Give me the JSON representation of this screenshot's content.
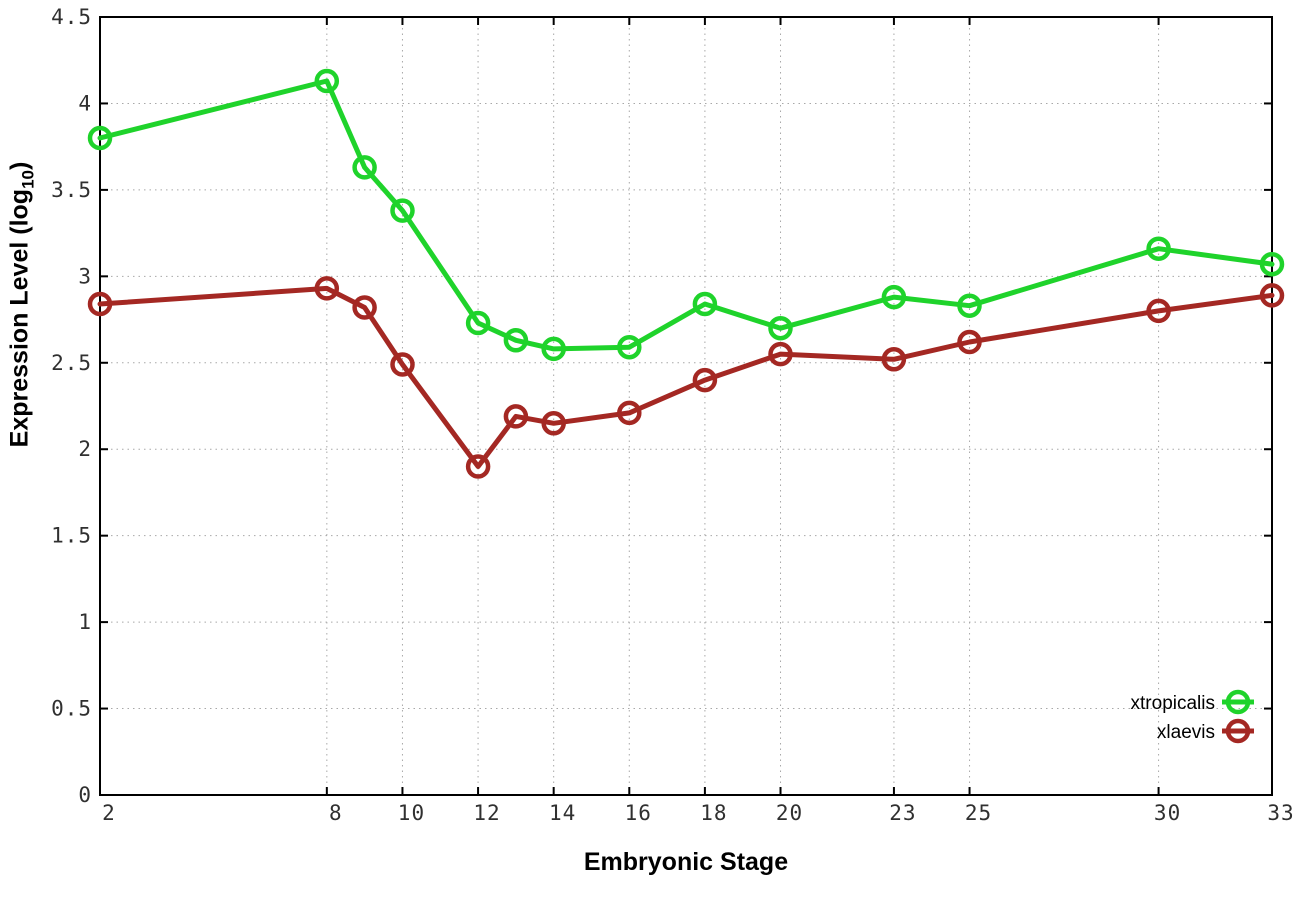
{
  "figure": {
    "background": "#ffffff",
    "border_color": "#000000",
    "grid_color": "#a8a8a8"
  },
  "axes": {
    "xlabel": "Embryonic Stage",
    "ylabel_prefix": "Expression Level (log",
    "ylabel_sub": "10",
    "ylabel_suffix": ")"
  },
  "legend": {
    "position": "bottom-right",
    "entries": [
      "xtropicalis",
      "xlaevis"
    ]
  },
  "chart_data": {
    "type": "line",
    "title": "",
    "xlabel": "Embryonic Stage",
    "ylabel": "Expression Level (log10)",
    "xlim": [
      2,
      33
    ],
    "ylim": [
      0,
      4.5
    ],
    "grid": true,
    "grid_style": "dotted",
    "legend_position": "bottom-right",
    "xticks": [
      2,
      8,
      10,
      12,
      14,
      16,
      18,
      20,
      23,
      25,
      30,
      33
    ],
    "yticks": [
      0,
      0.5,
      1,
      1.5,
      2,
      2.5,
      3,
      3.5,
      4,
      4.5
    ],
    "x": [
      2,
      8,
      9,
      10,
      12,
      13,
      14,
      16,
      18,
      20,
      23,
      25,
      30,
      33
    ],
    "series": [
      {
        "name": "xtropicalis",
        "color": "#1fd32b",
        "marker": "open-circle",
        "values": [
          3.8,
          4.13,
          3.63,
          3.38,
          2.73,
          2.63,
          2.58,
          2.59,
          2.84,
          2.7,
          2.88,
          2.83,
          3.16,
          3.07
        ]
      },
      {
        "name": "xlaevis",
        "color": "#a42823",
        "marker": "open-circle",
        "values": [
          2.84,
          2.93,
          2.82,
          2.49,
          1.9,
          2.19,
          2.15,
          2.21,
          2.4,
          2.55,
          2.52,
          2.62,
          2.8,
          2.89
        ]
      }
    ]
  }
}
